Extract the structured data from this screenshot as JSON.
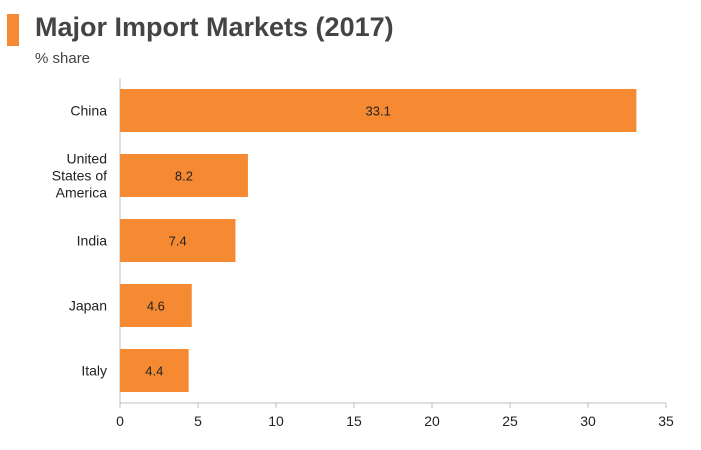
{
  "chart_data": {
    "type": "bar",
    "orientation": "horizontal",
    "title": "Major Import Markets (2017)",
    "subtitle": "% share",
    "categories": [
      [
        "China"
      ],
      [
        "United",
        "States of",
        "America"
      ],
      [
        "India"
      ],
      [
        "Japan"
      ],
      [
        "Italy"
      ]
    ],
    "values": [
      33.1,
      8.2,
      7.4,
      4.6,
      4.4
    ],
    "data_labels": [
      "33.1",
      "8.2",
      "7.4",
      "4.6",
      "4.4"
    ],
    "xlim": [
      0,
      35
    ],
    "xticks": [
      0,
      5,
      10,
      15,
      20,
      25,
      30,
      35
    ],
    "xtick_labels": [
      "0",
      "5",
      "10",
      "15",
      "20",
      "25",
      "30",
      "35"
    ],
    "grid": false,
    "legend": "none",
    "bar_color": "#f58a33",
    "accent_color": "#f58a33"
  }
}
